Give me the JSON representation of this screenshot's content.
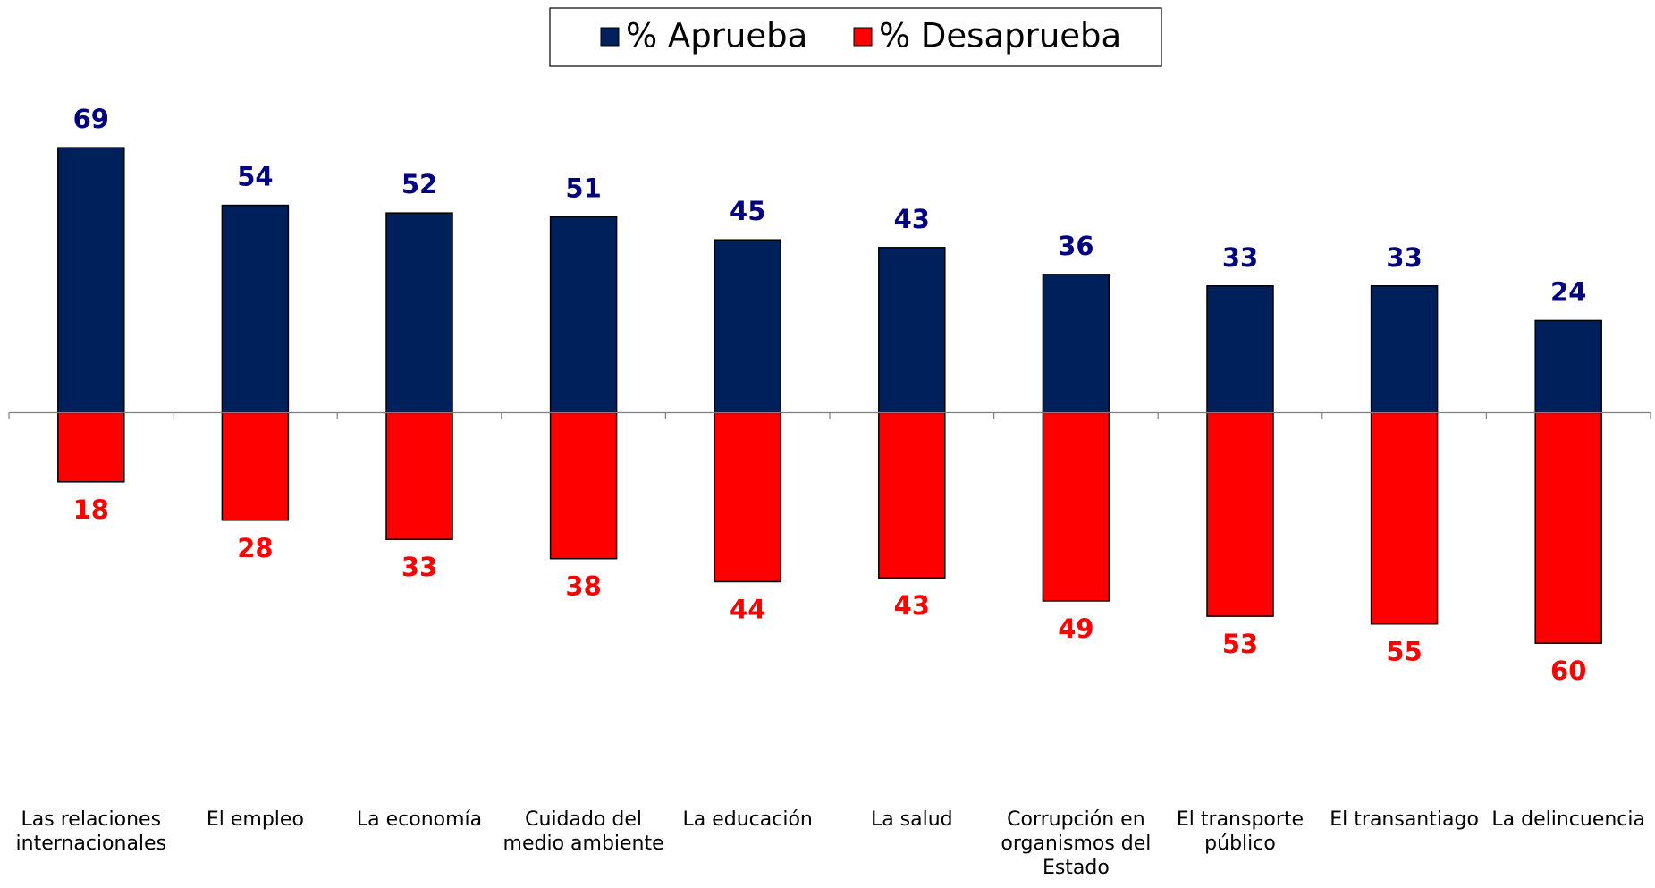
{
  "chart_data": {
    "type": "diverging_bar",
    "categories": [
      "Las relaciones internacionales",
      "El empleo",
      "La economía",
      "Cuidado del medio ambiente",
      "La educación",
      "La salud",
      "Corrupción en organismos del Estado",
      "El transporte público",
      "El transantiago",
      "La delincuencia"
    ],
    "series": [
      {
        "name": "% Aprueba",
        "color": "#00205b",
        "label_color": "#000080",
        "values": [
          69,
          54,
          52,
          51,
          45,
          43,
          36,
          33,
          33,
          24
        ]
      },
      {
        "name": "% Desaprueba",
        "color": "#ff0000",
        "label_color": "#ff0000",
        "values": [
          18,
          28,
          33,
          38,
          44,
          43,
          49,
          53,
          55,
          60
        ]
      }
    ],
    "ylim": [
      -100,
      100
    ],
    "legend": "top"
  }
}
